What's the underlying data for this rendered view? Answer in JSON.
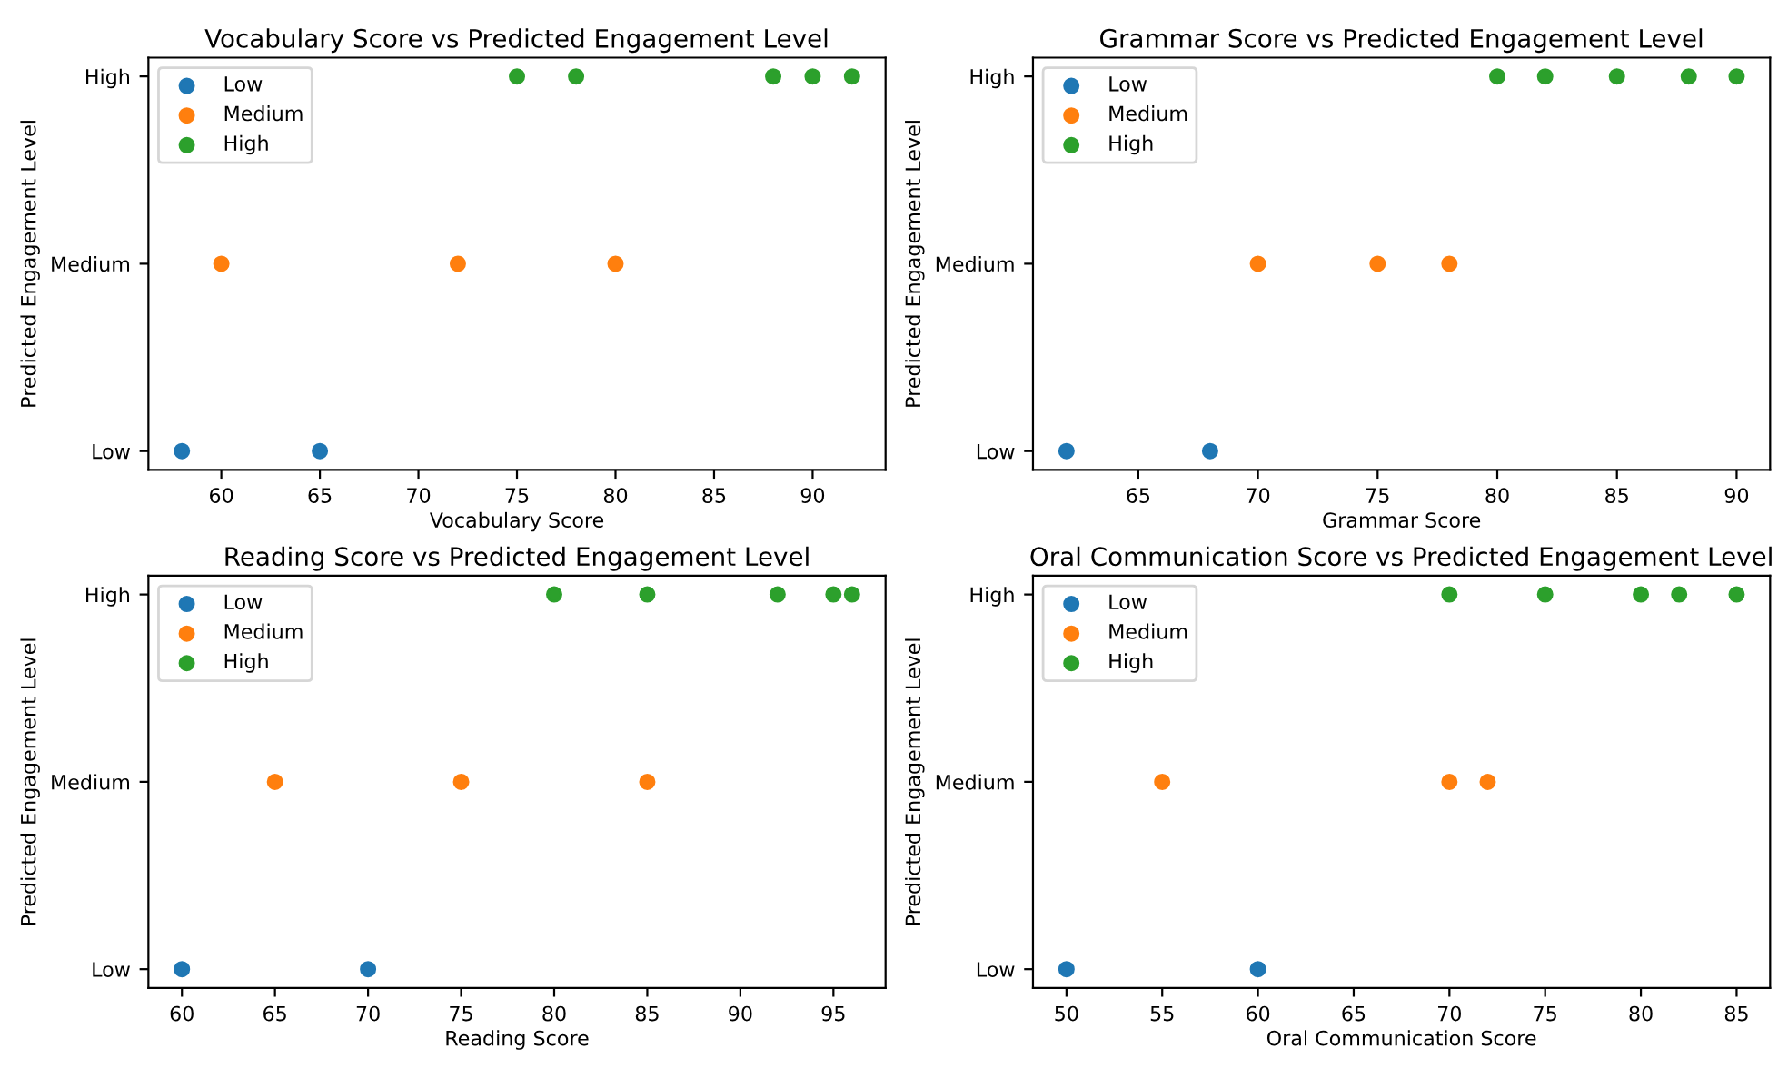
{
  "chart_data": [
    {
      "type": "scatter",
      "orientation": "horizontal",
      "title": "Vocabulary Score vs Predicted Engagement Level",
      "xlabel": "Vocabulary Score",
      "ylabel": "Predicted Engagement Level",
      "xlim": [
        56.3,
        93.7
      ],
      "xticks": [
        60,
        65,
        70,
        75,
        80,
        85,
        90
      ],
      "categories": [
        "High",
        "Medium",
        "Low"
      ],
      "legend": "top left",
      "marker": "circle",
      "series": [
        {
          "name": "Low",
          "color": "#1f77b4",
          "values": [
            null,
            null,
            58
          ]
        },
        {
          "color": "#1f77b4",
          "values": [
            null,
            null,
            65
          ]
        },
        {
          "name": "Medium",
          "color": "#ff7f0e",
          "values": [
            null,
            60,
            null
          ]
        },
        {
          "color": "#ff7f0e",
          "values": [
            null,
            72,
            null
          ]
        },
        {
          "color": "#ff7f0e",
          "values": [
            null,
            80,
            null
          ]
        },
        {
          "name": "High",
          "color": "#2ca02c",
          "values": [
            75,
            null,
            null
          ]
        },
        {
          "color": "#2ca02c",
          "values": [
            78,
            null,
            null
          ]
        },
        {
          "color": "#2ca02c",
          "values": [
            88,
            null,
            null
          ]
        },
        {
          "color": "#2ca02c",
          "values": [
            90,
            null,
            null
          ]
        },
        {
          "color": "#2ca02c",
          "values": [
            92,
            null,
            null
          ]
        }
      ]
    },
    {
      "type": "scatter",
      "orientation": "horizontal",
      "title": "Grammar Score vs Predicted Engagement Level",
      "xlabel": "Grammar Score",
      "ylabel": "Predicted Engagement Level",
      "xlim": [
        60.6,
        91.4
      ],
      "xticks": [
        65,
        70,
        75,
        80,
        85,
        90
      ],
      "categories": [
        "High",
        "Medium",
        "Low"
      ],
      "legend": "top left",
      "marker": "circle",
      "series": [
        {
          "name": "Low",
          "color": "#1f77b4",
          "values": [
            null,
            null,
            62
          ]
        },
        {
          "color": "#1f77b4",
          "values": [
            null,
            null,
            68
          ]
        },
        {
          "name": "Medium",
          "color": "#ff7f0e",
          "values": [
            null,
            70,
            null
          ]
        },
        {
          "color": "#ff7f0e",
          "values": [
            null,
            75,
            null
          ]
        },
        {
          "color": "#ff7f0e",
          "values": [
            null,
            78,
            null
          ]
        },
        {
          "name": "High",
          "color": "#2ca02c",
          "values": [
            80,
            null,
            null
          ]
        },
        {
          "color": "#2ca02c",
          "values": [
            82,
            null,
            null
          ]
        },
        {
          "color": "#2ca02c",
          "values": [
            85,
            null,
            null
          ]
        },
        {
          "color": "#2ca02c",
          "values": [
            88,
            null,
            null
          ]
        },
        {
          "color": "#2ca02c",
          "values": [
            90,
            null,
            null
          ]
        }
      ]
    },
    {
      "type": "scatter",
      "orientation": "horizontal",
      "title": "Reading Score vs Predicted Engagement Level",
      "xlabel": "Reading Score",
      "ylabel": "Predicted Engagement Level",
      "xlim": [
        58.2,
        97.8
      ],
      "xticks": [
        60,
        65,
        70,
        75,
        80,
        85,
        90,
        95
      ],
      "categories": [
        "High",
        "Medium",
        "Low"
      ],
      "legend": "top left",
      "marker": "circle",
      "series": [
        {
          "name": "Low",
          "color": "#1f77b4",
          "values": [
            null,
            null,
            60
          ]
        },
        {
          "color": "#1f77b4",
          "values": [
            null,
            null,
            70
          ]
        },
        {
          "name": "Medium",
          "color": "#ff7f0e",
          "values": [
            null,
            65,
            null
          ]
        },
        {
          "color": "#ff7f0e",
          "values": [
            null,
            75,
            null
          ]
        },
        {
          "color": "#ff7f0e",
          "values": [
            null,
            85,
            null
          ]
        },
        {
          "name": "High",
          "color": "#2ca02c",
          "values": [
            80,
            null,
            null
          ]
        },
        {
          "color": "#2ca02c",
          "values": [
            85,
            null,
            null
          ]
        },
        {
          "color": "#2ca02c",
          "values": [
            92,
            null,
            null
          ]
        },
        {
          "color": "#2ca02c",
          "values": [
            95,
            null,
            null
          ]
        },
        {
          "color": "#2ca02c",
          "values": [
            96,
            null,
            null
          ]
        }
      ]
    },
    {
      "type": "scatter",
      "orientation": "horizontal",
      "title": "Oral Communication Score vs Predicted Engagement Level",
      "xlabel": "Oral Communication Score",
      "ylabel": "Predicted Engagement Level",
      "xlim": [
        48.25,
        86.75
      ],
      "xticks": [
        50,
        55,
        60,
        65,
        70,
        75,
        80,
        85
      ],
      "categories": [
        "High",
        "Medium",
        "Low"
      ],
      "legend": "top left",
      "marker": "circle",
      "series": [
        {
          "name": "Low",
          "color": "#1f77b4",
          "values": [
            null,
            null,
            50
          ]
        },
        {
          "color": "#1f77b4",
          "values": [
            null,
            null,
            60
          ]
        },
        {
          "name": "Medium",
          "color": "#ff7f0e",
          "values": [
            null,
            55,
            null
          ]
        },
        {
          "color": "#ff7f0e",
          "values": [
            null,
            70,
            null
          ]
        },
        {
          "color": "#ff7f0e",
          "values": [
            null,
            72,
            null
          ]
        },
        {
          "name": "High",
          "color": "#2ca02c",
          "values": [
            70,
            null,
            null
          ]
        },
        {
          "color": "#2ca02c",
          "values": [
            75,
            null,
            null
          ]
        },
        {
          "color": "#2ca02c",
          "values": [
            80,
            null,
            null
          ]
        },
        {
          "color": "#2ca02c",
          "values": [
            82,
            null,
            null
          ]
        },
        {
          "color": "#2ca02c",
          "values": [
            85,
            null,
            null
          ]
        }
      ]
    }
  ]
}
